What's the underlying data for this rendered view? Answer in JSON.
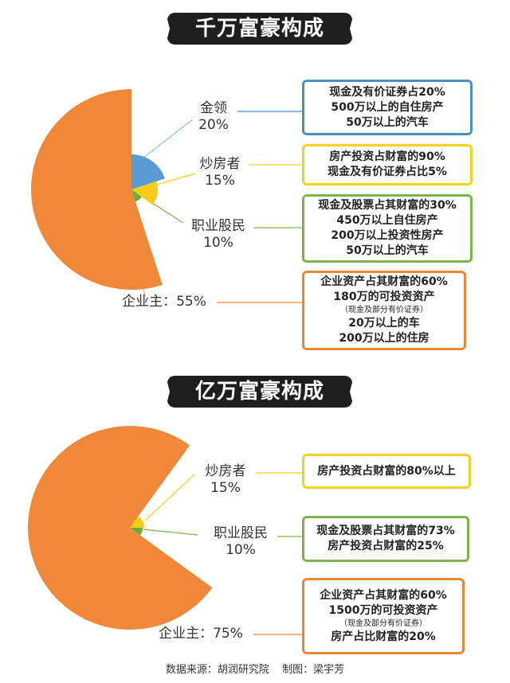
{
  "sections": [
    {
      "title": "千万富豪构成",
      "labels": [
        {
          "name": "金领",
          "pct": "20%"
        },
        {
          "name": "炒房者",
          "pct": "15%"
        },
        {
          "name": "职业股民",
          "pct": "10%"
        },
        {
          "name": "企业主：55%"
        }
      ],
      "boxes": [
        {
          "lines": [
            "现金及有价证券占20%",
            "500万以上的自住房产",
            "50万以上的汽车"
          ]
        },
        {
          "lines": [
            "房产投资占财富的90%",
            "现金及有价证券占比5%"
          ]
        },
        {
          "lines": [
            "现金及股票占其财富的30%",
            "450万以上自住房产",
            "200万以上投资性房产",
            "50万以上的汽车"
          ]
        },
        {
          "lines": [
            "企业资产占其财富的60%",
            "180万的可投资资产",
            "（现金及部分有价证券）",
            "20万以上的车",
            "200万以上的住房"
          ]
        }
      ]
    },
    {
      "title": "亿万富豪构成",
      "labels": [
        {
          "name": "炒房者",
          "pct": "15%"
        },
        {
          "name": "职业股民",
          "pct": "10%"
        },
        {
          "name": "企业主：75%"
        }
      ],
      "boxes": [
        {
          "lines": [
            "房产投资占财富的80%以上"
          ]
        },
        {
          "lines": [
            "现金及股票占其财富的73%",
            "房产投资占财富的25%"
          ]
        },
        {
          "lines": [
            "企业资产占其财富的60%",
            "1500万的可投资资产",
            "（现金及部分有价证券）",
            "房产占比财富的20%"
          ]
        }
      ]
    }
  ],
  "footer": {
    "source": "数据来源：胡润研究院",
    "author": "制图：梁宇芳"
  },
  "chart_data": [
    {
      "type": "pie",
      "title": "千万富豪构成",
      "series": [
        {
          "name": "金领",
          "value": 20,
          "color": "#5b9bd5"
        },
        {
          "name": "炒房者",
          "value": 15,
          "color": "#f5cc1a"
        },
        {
          "name": "职业股民",
          "value": 10,
          "color": "#6aaa3a"
        },
        {
          "name": "企业主",
          "value": 55,
          "color": "#f0883a"
        }
      ]
    },
    {
      "type": "pie",
      "title": "亿万富豪构成",
      "series": [
        {
          "name": "炒房者",
          "value": 15,
          "color": "#f5cc1a"
        },
        {
          "name": "职业股民",
          "value": 10,
          "color": "#6aaa3a"
        },
        {
          "name": "企业主",
          "value": 75,
          "color": "#f0883a"
        }
      ]
    }
  ]
}
